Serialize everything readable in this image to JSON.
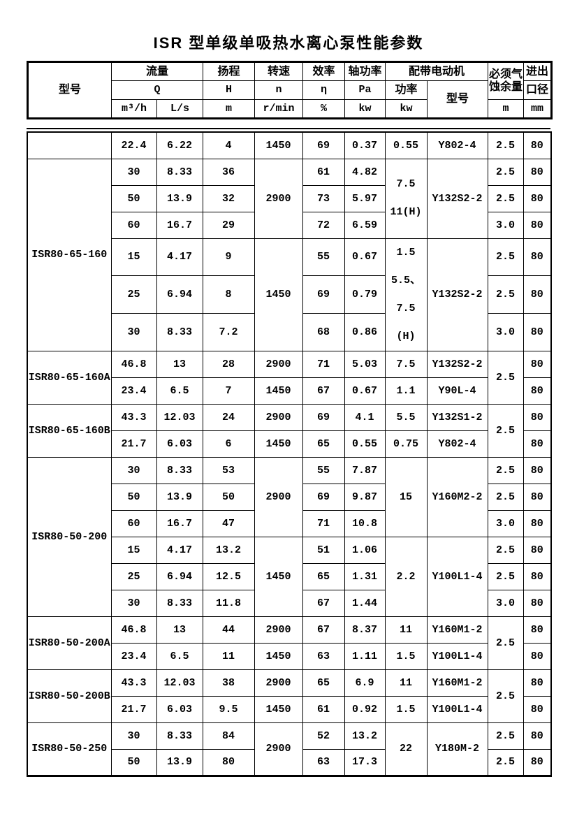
{
  "title": "ISR 型单级单吸热水离心泵性能参数",
  "header": {
    "model": "型号",
    "flow": "流量",
    "q": "Q",
    "m3h": "m³/h",
    "ls": "L/s",
    "head": "扬程",
    "h": "H",
    "m": "m",
    "speed": "转速",
    "n": "n",
    "rmin": "r/min",
    "eff": "效率",
    "eta": "η",
    "pct": "%",
    "shaft": "轴功率",
    "pa": "Pa",
    "kw1": "kw",
    "motor": "配带电动机",
    "motor_power": "功率",
    "kw2": "kw",
    "motor_model": "型号",
    "npsh_l1": "必须气",
    "npsh_l2": "蚀余量",
    "npsh_unit": "m",
    "bore_l1": "进出",
    "bore_l2": "口径",
    "bore_unit": "mm"
  },
  "table": {
    "columns": [
      "型号",
      "Q m³/h",
      "Q L/s",
      "H m",
      "n r/min",
      "η %",
      "Pa kw",
      "功率 kw",
      "电动机型号",
      "必须气蚀余量 m",
      "进出口径 mm"
    ],
    "rows": [
      [
        {
          "t": ""
        },
        {
          "t": "22.4"
        },
        {
          "t": "6.22"
        },
        {
          "t": "4"
        },
        {
          "t": "1450"
        },
        {
          "t": "69"
        },
        {
          "t": "0.37"
        },
        {
          "t": "0.55"
        },
        {
          "t": "Y802-4"
        },
        {
          "t": "2.5"
        },
        {
          "t": "80"
        }
      ],
      [
        {
          "t": "ISR80-65-160",
          "rs": 6
        },
        {
          "t": "30"
        },
        {
          "t": "8.33"
        },
        {
          "t": "36"
        },
        {
          "t": "2900",
          "rs": 3
        },
        {
          "t": "61"
        },
        {
          "t": "4.82"
        },
        {
          "lines": [
            "7.5",
            "11(H)"
          ],
          "rs": 3
        },
        {
          "t": "Y132S2-2",
          "rs": 3
        },
        {
          "t": "2.5"
        },
        {
          "t": "80"
        }
      ],
      [
        {
          "t": "50"
        },
        {
          "t": "13.9"
        },
        {
          "t": "32"
        },
        {
          "t": "73"
        },
        {
          "t": "5.97"
        },
        {
          "t": "2.5"
        },
        {
          "t": "80"
        }
      ],
      [
        {
          "t": "60"
        },
        {
          "t": "16.7"
        },
        {
          "t": "29"
        },
        {
          "t": "72"
        },
        {
          "t": "6.59"
        },
        {
          "t": "3.0"
        },
        {
          "t": "80"
        }
      ],
      [
        {
          "t": "15"
        },
        {
          "t": "4.17"
        },
        {
          "t": "9"
        },
        {
          "t": "1450",
          "rs": 3
        },
        {
          "t": "55"
        },
        {
          "t": "0.67"
        },
        {
          "lines": [
            "1.5",
            "5.5、7.5",
            "(H)"
          ],
          "rs": 3
        },
        {
          "t": "Y132S2-2",
          "rs": 3
        },
        {
          "t": "2.5"
        },
        {
          "t": "80"
        }
      ],
      [
        {
          "t": "25"
        },
        {
          "t": "6.94"
        },
        {
          "t": "8"
        },
        {
          "t": "69"
        },
        {
          "t": "0.79"
        },
        {
          "t": "2.5"
        },
        {
          "t": "80"
        }
      ],
      [
        {
          "t": "30"
        },
        {
          "t": "8.33"
        },
        {
          "t": "7.2"
        },
        {
          "t": "68"
        },
        {
          "t": "0.86"
        },
        {
          "t": "3.0"
        },
        {
          "t": "80"
        }
      ],
      [
        {
          "t": "ISR80-65-160A",
          "rs": 2
        },
        {
          "t": "46.8"
        },
        {
          "t": "13"
        },
        {
          "t": "28"
        },
        {
          "t": "2900"
        },
        {
          "t": "71"
        },
        {
          "t": "5.03"
        },
        {
          "t": "7.5"
        },
        {
          "t": "Y132S2-2"
        },
        {
          "t": "2.5",
          "rs": 2
        },
        {
          "t": "80"
        }
      ],
      [
        {
          "t": "23.4"
        },
        {
          "t": "6.5"
        },
        {
          "t": "7"
        },
        {
          "t": "1450"
        },
        {
          "t": "67"
        },
        {
          "t": "0.67"
        },
        {
          "t": "1.1"
        },
        {
          "t": "Y90L-4"
        },
        {
          "t": "80"
        }
      ],
      [
        {
          "t": "ISR80-65-160B",
          "rs": 2
        },
        {
          "t": "43.3"
        },
        {
          "t": "12.03"
        },
        {
          "t": "24"
        },
        {
          "t": "2900"
        },
        {
          "t": "69"
        },
        {
          "t": "4.1"
        },
        {
          "t": "5.5"
        },
        {
          "t": "Y132S1-2"
        },
        {
          "t": "2.5",
          "rs": 2
        },
        {
          "t": "80"
        }
      ],
      [
        {
          "t": "21.7"
        },
        {
          "t": "6.03"
        },
        {
          "t": "6"
        },
        {
          "t": "1450"
        },
        {
          "t": "65"
        },
        {
          "t": "0.55"
        },
        {
          "t": "0.75"
        },
        {
          "t": "Y802-4"
        },
        {
          "t": "80"
        }
      ],
      [
        {
          "t": "ISR80-50-200",
          "rs": 6
        },
        {
          "t": "30"
        },
        {
          "t": "8.33"
        },
        {
          "t": "53"
        },
        {
          "t": "2900",
          "rs": 3
        },
        {
          "t": "55"
        },
        {
          "t": "7.87"
        },
        {
          "t": "15",
          "rs": 3
        },
        {
          "t": "Y160M2-2",
          "rs": 3
        },
        {
          "t": "2.5"
        },
        {
          "t": "80"
        }
      ],
      [
        {
          "t": "50"
        },
        {
          "t": "13.9"
        },
        {
          "t": "50"
        },
        {
          "t": "69"
        },
        {
          "t": "9.87"
        },
        {
          "t": "2.5"
        },
        {
          "t": "80"
        }
      ],
      [
        {
          "t": "60"
        },
        {
          "t": "16.7"
        },
        {
          "t": "47"
        },
        {
          "t": "71"
        },
        {
          "t": "10.8"
        },
        {
          "t": "3.0"
        },
        {
          "t": "80"
        }
      ],
      [
        {
          "t": "15"
        },
        {
          "t": "4.17"
        },
        {
          "t": "13.2"
        },
        {
          "t": "1450",
          "rs": 3
        },
        {
          "t": "51"
        },
        {
          "t": "1.06"
        },
        {
          "t": "2.2",
          "rs": 3
        },
        {
          "t": "Y100L1-4",
          "rs": 3
        },
        {
          "t": "2.5"
        },
        {
          "t": "80"
        }
      ],
      [
        {
          "t": "25"
        },
        {
          "t": "6.94"
        },
        {
          "t": "12.5"
        },
        {
          "t": "65"
        },
        {
          "t": "1.31"
        },
        {
          "t": "2.5"
        },
        {
          "t": "80"
        }
      ],
      [
        {
          "t": "30"
        },
        {
          "t": "8.33"
        },
        {
          "t": "11.8"
        },
        {
          "t": "67"
        },
        {
          "t": "1.44"
        },
        {
          "t": "3.0"
        },
        {
          "t": "80"
        }
      ],
      [
        {
          "t": "ISR80-50-200A",
          "rs": 2
        },
        {
          "t": "46.8"
        },
        {
          "t": "13"
        },
        {
          "t": "44"
        },
        {
          "t": "2900"
        },
        {
          "t": "67"
        },
        {
          "t": "8.37"
        },
        {
          "t": "11"
        },
        {
          "t": "Y160M1-2"
        },
        {
          "t": "2.5",
          "rs": 2
        },
        {
          "t": "80"
        }
      ],
      [
        {
          "t": "23.4"
        },
        {
          "t": "6.5"
        },
        {
          "t": "11"
        },
        {
          "t": "1450"
        },
        {
          "t": "63"
        },
        {
          "t": "1.11"
        },
        {
          "t": "1.5"
        },
        {
          "t": "Y100L1-4"
        },
        {
          "t": "80"
        }
      ],
      [
        {
          "t": "ISR80-50-200B",
          "rs": 2
        },
        {
          "t": "43.3"
        },
        {
          "t": "12.03"
        },
        {
          "t": "38"
        },
        {
          "t": "2900"
        },
        {
          "t": "65"
        },
        {
          "t": "6.9"
        },
        {
          "t": "11"
        },
        {
          "t": "Y160M1-2"
        },
        {
          "t": "2.5",
          "rs": 2
        },
        {
          "t": "80"
        }
      ],
      [
        {
          "t": "21.7"
        },
        {
          "t": "6.03"
        },
        {
          "t": "9.5"
        },
        {
          "t": "1450"
        },
        {
          "t": "61"
        },
        {
          "t": "0.92"
        },
        {
          "t": "1.5"
        },
        {
          "t": "Y100L1-4"
        },
        {
          "t": "80"
        }
      ],
      [
        {
          "t": "ISR80-50-250",
          "rs": 2
        },
        {
          "t": "30"
        },
        {
          "t": "8.33"
        },
        {
          "t": "84"
        },
        {
          "t": "2900",
          "rs": 2
        },
        {
          "t": "52"
        },
        {
          "t": "13.2"
        },
        {
          "t": "22",
          "rs": 2
        },
        {
          "t": "Y180M-2",
          "rs": 2
        },
        {
          "t": "2.5"
        },
        {
          "t": "80"
        }
      ],
      [
        {
          "t": "50"
        },
        {
          "t": "13.9"
        },
        {
          "t": "80"
        },
        {
          "t": "63"
        },
        {
          "t": "17.3"
        },
        {
          "t": "2.5"
        },
        {
          "t": "80"
        }
      ]
    ]
  }
}
